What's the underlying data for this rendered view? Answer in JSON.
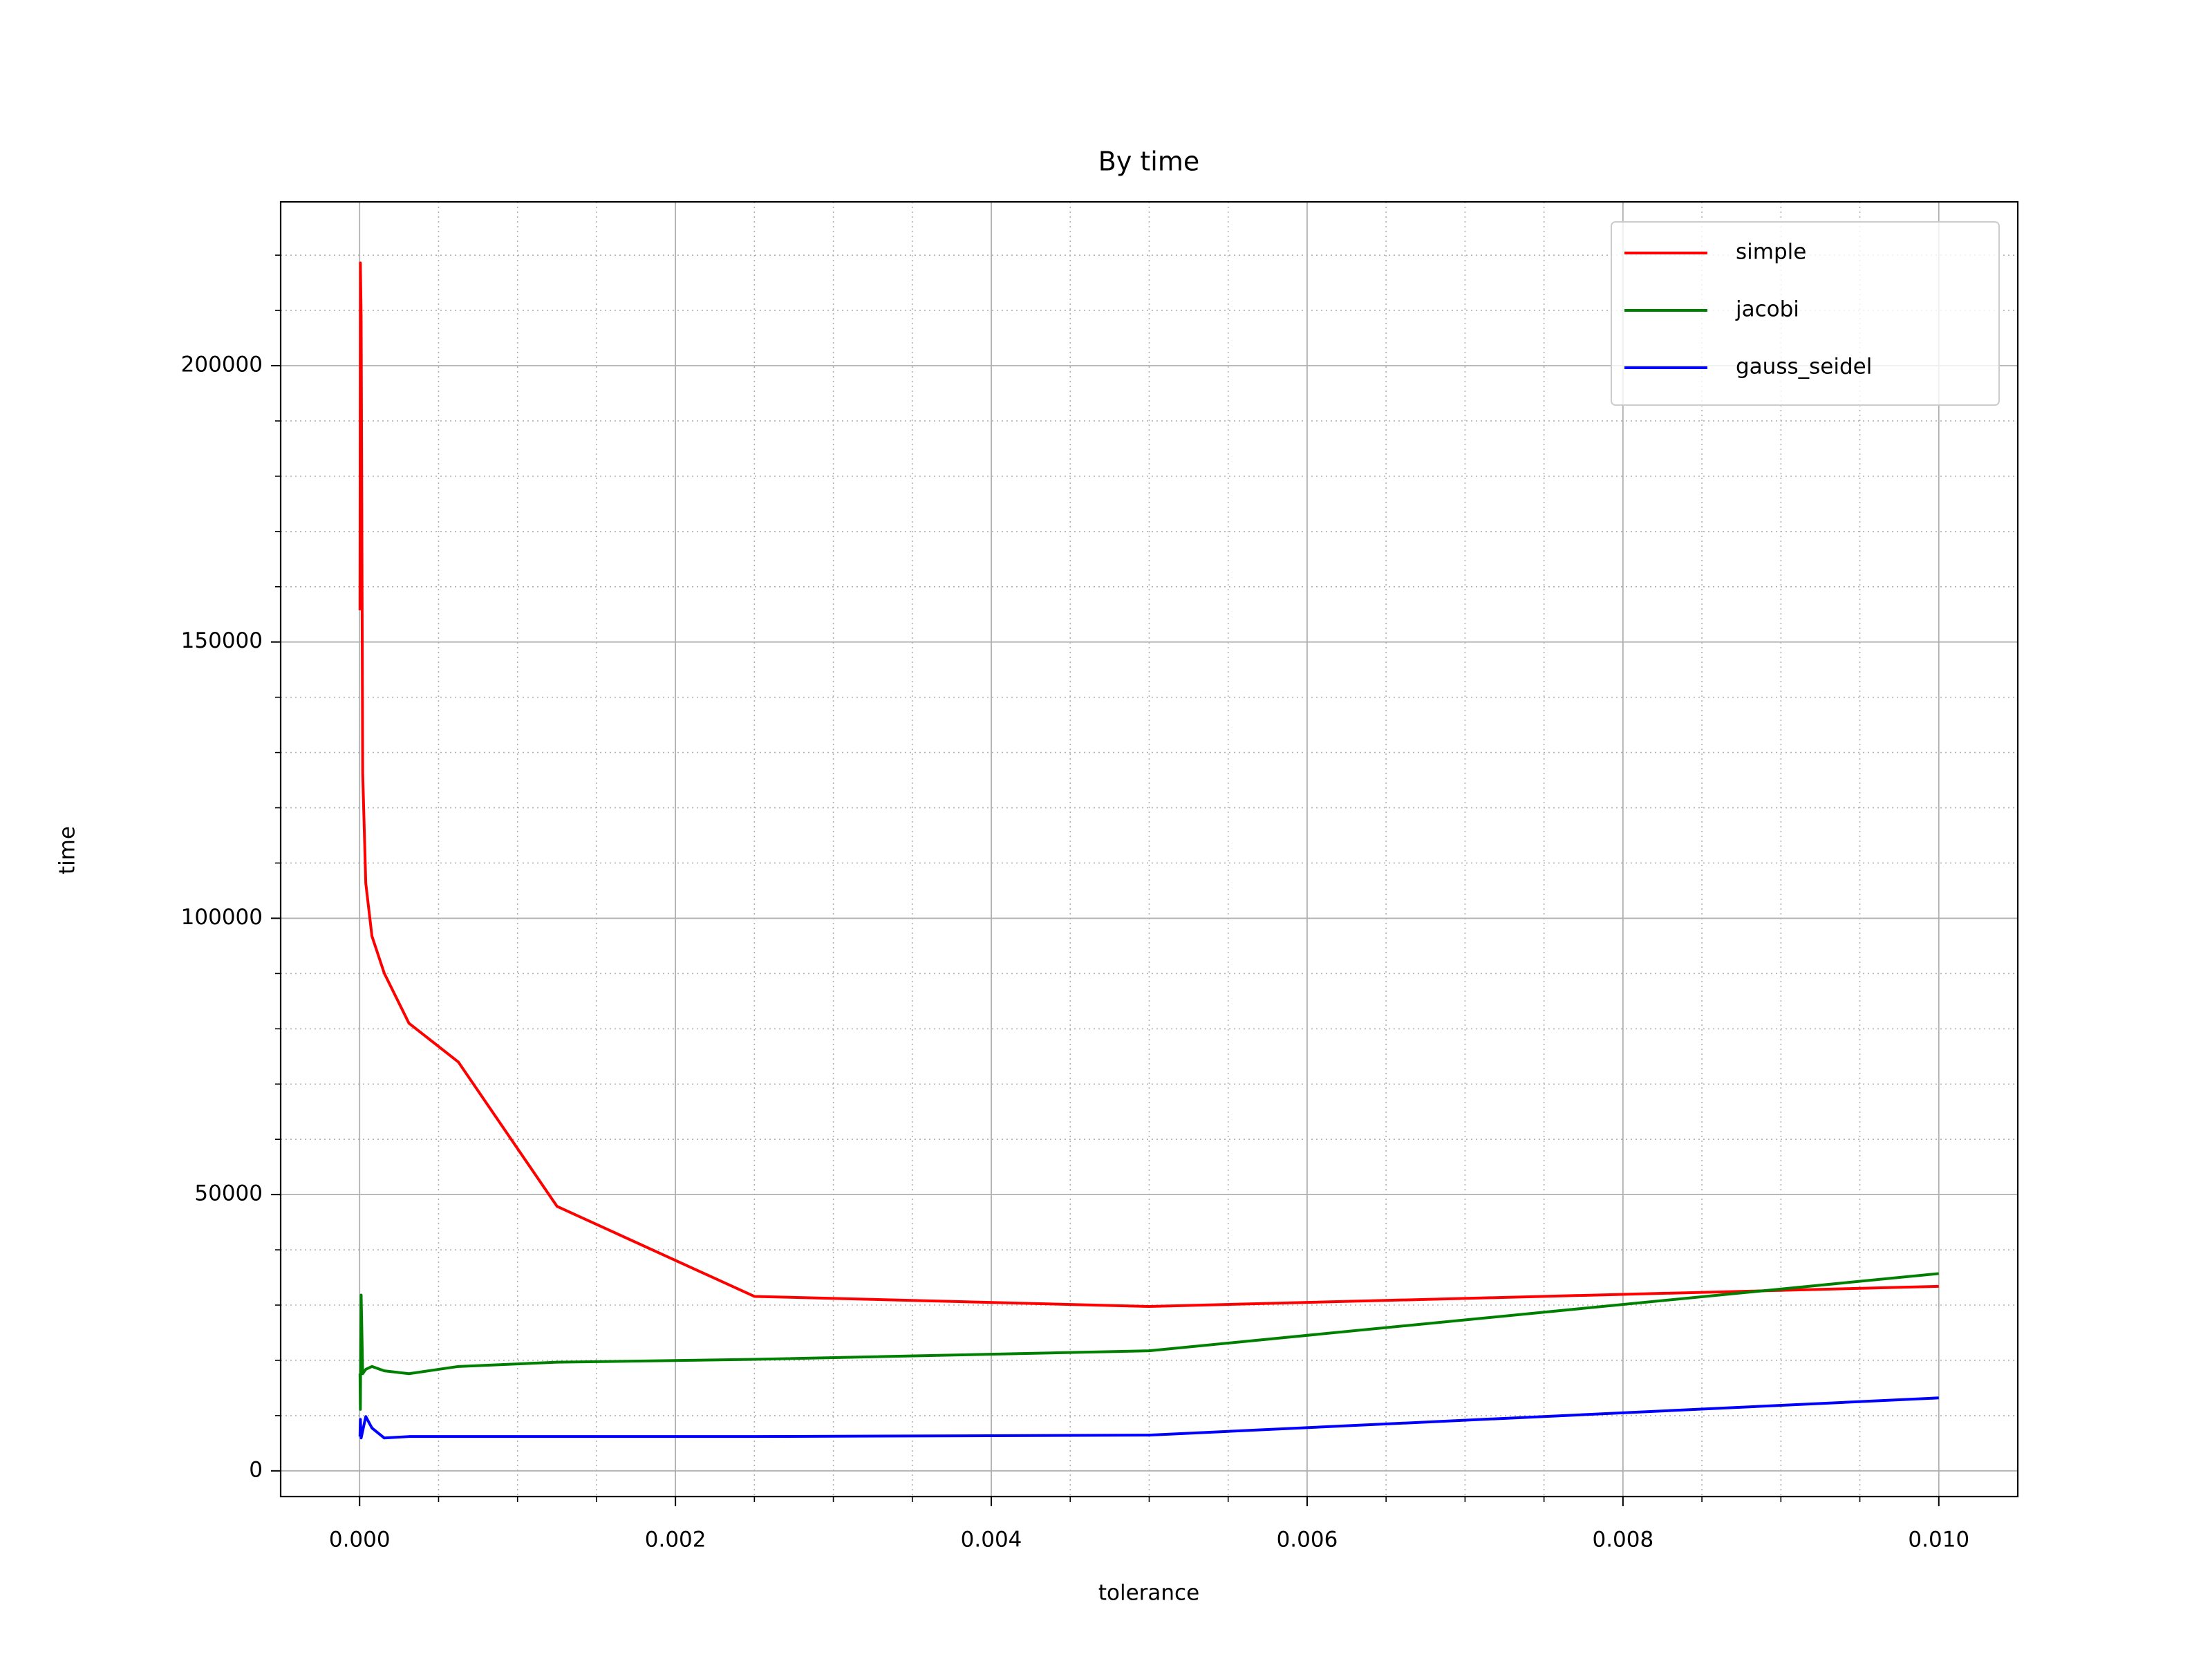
{
  "chart_data": {
    "type": "line",
    "title": "By time",
    "x_label": "tolerance",
    "y_label": "time",
    "x": [
      0.01,
      0.005,
      0.0025,
      0.00125,
      0.000625,
      0.0003125,
      0.00015625,
      7.8125e-05,
      3.90625e-05,
      1.953125e-05,
      9.765625e-06,
      4.8828125e-06,
      2.44140625e-06
    ],
    "series": [
      {
        "name": "simple",
        "color": "#ff0000",
        "values": [
          33400,
          29750,
          31570,
          47870,
          74000,
          81000,
          90040,
          96770,
          106340,
          126260,
          209000,
          218600,
          155750
        ]
      },
      {
        "name": "jacobi",
        "color": "#008000",
        "values": [
          35700,
          21730,
          20180,
          19660,
          18890,
          17590,
          18100,
          18890,
          18370,
          17590,
          31820,
          11130,
          17590
        ]
      },
      {
        "name": "gauss_seidel",
        "color": "#0000ff",
        "values": [
          13200,
          6470,
          6210,
          6210,
          6210,
          6210,
          5950,
          7760,
          9830,
          7240,
          5950,
          9310,
          6210
        ]
      }
    ],
    "xlim": [
      -0.0005,
      0.0105
    ],
    "ylim": [
      -4650,
      229650
    ],
    "xticks": [
      {
        "value": 0,
        "label": "0.000"
      },
      {
        "value": 0.002,
        "label": "0.002"
      },
      {
        "value": 0.004,
        "label": "0.004"
      },
      {
        "value": 0.006,
        "label": "0.006"
      },
      {
        "value": 0.008,
        "label": "0.008"
      },
      {
        "value": 0.01,
        "label": "0.010"
      }
    ],
    "yticks": [
      0,
      50000,
      100000,
      150000,
      200000
    ],
    "xminor": [
      0.0005,
      0.001,
      0.0015,
      0.0025,
      0.003,
      0.0035,
      0.0045,
      0.005,
      0.0055,
      0.0065,
      0.007,
      0.0075,
      0.0085,
      0.009,
      0.0095
    ],
    "yminor": [
      10000,
      20000,
      30000,
      40000,
      60000,
      70000,
      80000,
      90000,
      110000,
      120000,
      130000,
      140000,
      160000,
      170000,
      180000,
      190000,
      210000,
      220000
    ],
    "grid": true,
    "minor_grid": true,
    "legend": "upper right"
  }
}
